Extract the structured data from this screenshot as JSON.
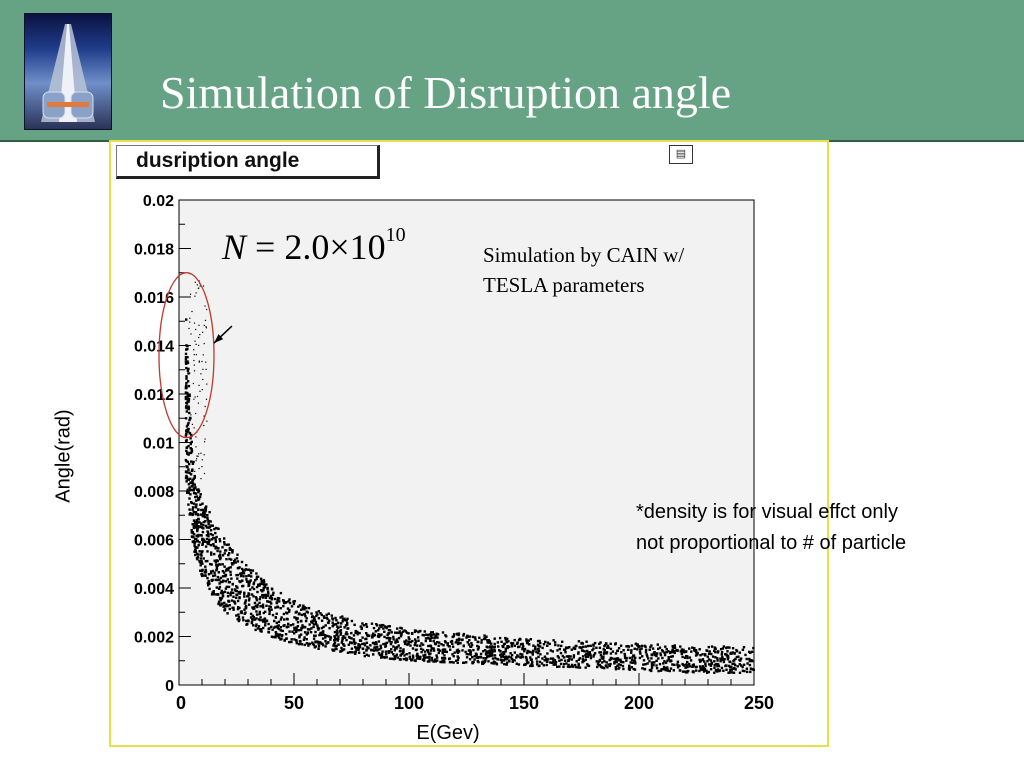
{
  "slide": {
    "title": "Simulation of Disruption angle",
    "logo_icon": "accelerator-tunnel-logo"
  },
  "plot_title": "dusription angle",
  "window_icon": "canvas-window-icon",
  "annotations": {
    "formula": {
      "var": "N",
      "equals": " = 2.0×10",
      "exponent": "10"
    },
    "simulation_line1": "Simulation by CAIN w/",
    "simulation_line2": "TESLA parameters",
    "density_line1": "*density is for visual effct only",
    "density_line2": "not proportional to # of particle"
  },
  "chart_data": {
    "type": "scatter",
    "title": "dusription angle",
    "xlabel": "E(Gev)",
    "ylabel": "Angle(rad)",
    "xlim": [
      0,
      250
    ],
    "ylim": [
      0,
      0.02
    ],
    "xticks": [
      "0",
      "50",
      "100",
      "150",
      "200",
      "250"
    ],
    "yticks": [
      "0",
      "0.002",
      "0.004",
      "0.006",
      "0.008",
      "0.01",
      "0.012",
      "0.014",
      "0.016",
      "0.018",
      "0.02"
    ],
    "grid": false,
    "marker_color": "#000000",
    "plot_background": "#f2f2f2",
    "envelope": {
      "x": [
        3,
        5,
        7,
        10,
        15,
        20,
        30,
        40,
        50,
        60,
        80,
        100,
        125,
        150,
        175,
        200,
        225,
        250
      ],
      "y_upper": [
        0.0165,
        0.011,
        0.0085,
        0.0078,
        0.0068,
        0.006,
        0.0049,
        0.0041,
        0.0035,
        0.0031,
        0.0026,
        0.0023,
        0.0021,
        0.0019,
        0.0018,
        0.0017,
        0.0016,
        0.0016
      ],
      "y_center": [
        0.011,
        0.0085,
        0.007,
        0.006,
        0.0051,
        0.0045,
        0.0037,
        0.0031,
        0.0027,
        0.0024,
        0.002,
        0.0017,
        0.0015,
        0.0014,
        0.0013,
        0.0012,
        0.0011,
        0.0011
      ],
      "y_lower": [
        0.0085,
        0.0065,
        0.0053,
        0.0045,
        0.0036,
        0.003,
        0.0024,
        0.002,
        0.0017,
        0.0015,
        0.0012,
        0.001,
        0.0009,
        0.0008,
        0.0007,
        0.0006,
        0.0005,
        0.0005
      ]
    },
    "highlight_ellipse": {
      "x_range": [
        0,
        10
      ],
      "y_range": [
        0.0102,
        0.017
      ],
      "color": "#c0392b"
    },
    "arrow": {
      "from": [
        23,
        0.0148
      ],
      "to": [
        10,
        0.0141
      ]
    }
  }
}
